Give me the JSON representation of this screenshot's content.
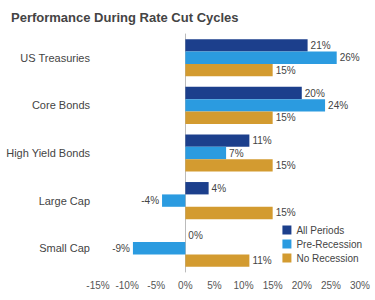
{
  "chart_data": {
    "type": "bar",
    "orientation": "horizontal",
    "title": "Performance During Rate Cut Cycles",
    "categories": [
      "US Treasuries",
      "Core Bonds",
      "High Yield Bonds",
      "Large Cap",
      "Small Cap"
    ],
    "series": [
      {
        "name": "All Periods",
        "color": "#1c3f8c",
        "values": [
          21,
          20,
          11,
          4,
          0
        ],
        "value_labels": [
          "21%",
          "20%",
          "11%",
          "4%",
          "0%"
        ]
      },
      {
        "name": "Pre-Recession",
        "color": "#2b9be0",
        "values": [
          26,
          24,
          7,
          -4,
          -9
        ],
        "value_labels": [
          "26%",
          "24%",
          "7%",
          "-4%",
          "-9%"
        ]
      },
      {
        "name": "No Recession",
        "color": "#d39b30",
        "values": [
          15,
          15,
          15,
          15,
          11
        ],
        "value_labels": [
          "15%",
          "15%",
          "15%",
          "15%",
          "11%"
        ]
      }
    ],
    "xlim": [
      -15,
      30
    ],
    "xticks": [
      {
        "value": -15,
        "label": "-15%"
      },
      {
        "value": -10,
        "label": "-10%"
      },
      {
        "value": -5,
        "label": "-5%"
      },
      {
        "value": 0,
        "label": "0%"
      },
      {
        "value": 5,
        "label": "5%"
      },
      {
        "value": 10,
        "label": "10%"
      },
      {
        "value": 15,
        "label": "15%"
      },
      {
        "value": 20,
        "label": "20%"
      },
      {
        "value": 25,
        "label": "25%"
      },
      {
        "value": 30,
        "label": "30%"
      }
    ],
    "data_labels": true,
    "legend": "bottom-right",
    "grid": false
  }
}
